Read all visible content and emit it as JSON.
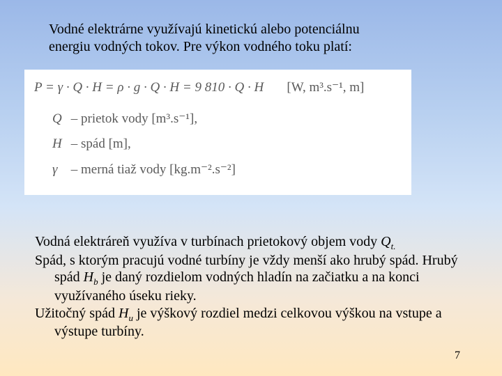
{
  "intro": {
    "line1": "Vodné elektrárne využívajú kinetickú alebo potenciálnu",
    "line2": "energiu vodných tokov. Pre výkon vodného toku platí:"
  },
  "formula": {
    "equation_html": "P = γ · Q · H = ρ · g · Q · H = 9 810 · Q · H",
    "units": "[W, m³.s⁻¹, m]",
    "def_q_sym": "Q",
    "def_q_txt": " – prietok vody [m³.s⁻¹],",
    "def_h_sym": "H",
    "def_h_txt": " – spád [m],",
    "def_g_sym": "γ",
    "def_g_txt": " – merná tiaž vody [kg.m⁻².s⁻²]"
  },
  "body": {
    "p1_a": "Vodná elektráreň využíva v turbínach prietokový objem vody ",
    "p1_q": "Q",
    "p1_qt": "t.",
    "p2_a": "Spád, s ktorým pracujú vodné turbíny je vždy menší ako hrubý spád. Hrubý spád ",
    "p2_h": "H",
    "p2_hb": "b",
    "p2_b": " je daný rozdielom vodných hladín na začiatku a na konci využívaného úseku rieky.",
    "p3_a": "Užitočný spád ",
    "p3_h": "H",
    "p3_hu": "u",
    "p3_b": " je výškový rozdiel medzi celkovou výškou na vstupe a výstupe turbíny."
  },
  "page_number": "7"
}
